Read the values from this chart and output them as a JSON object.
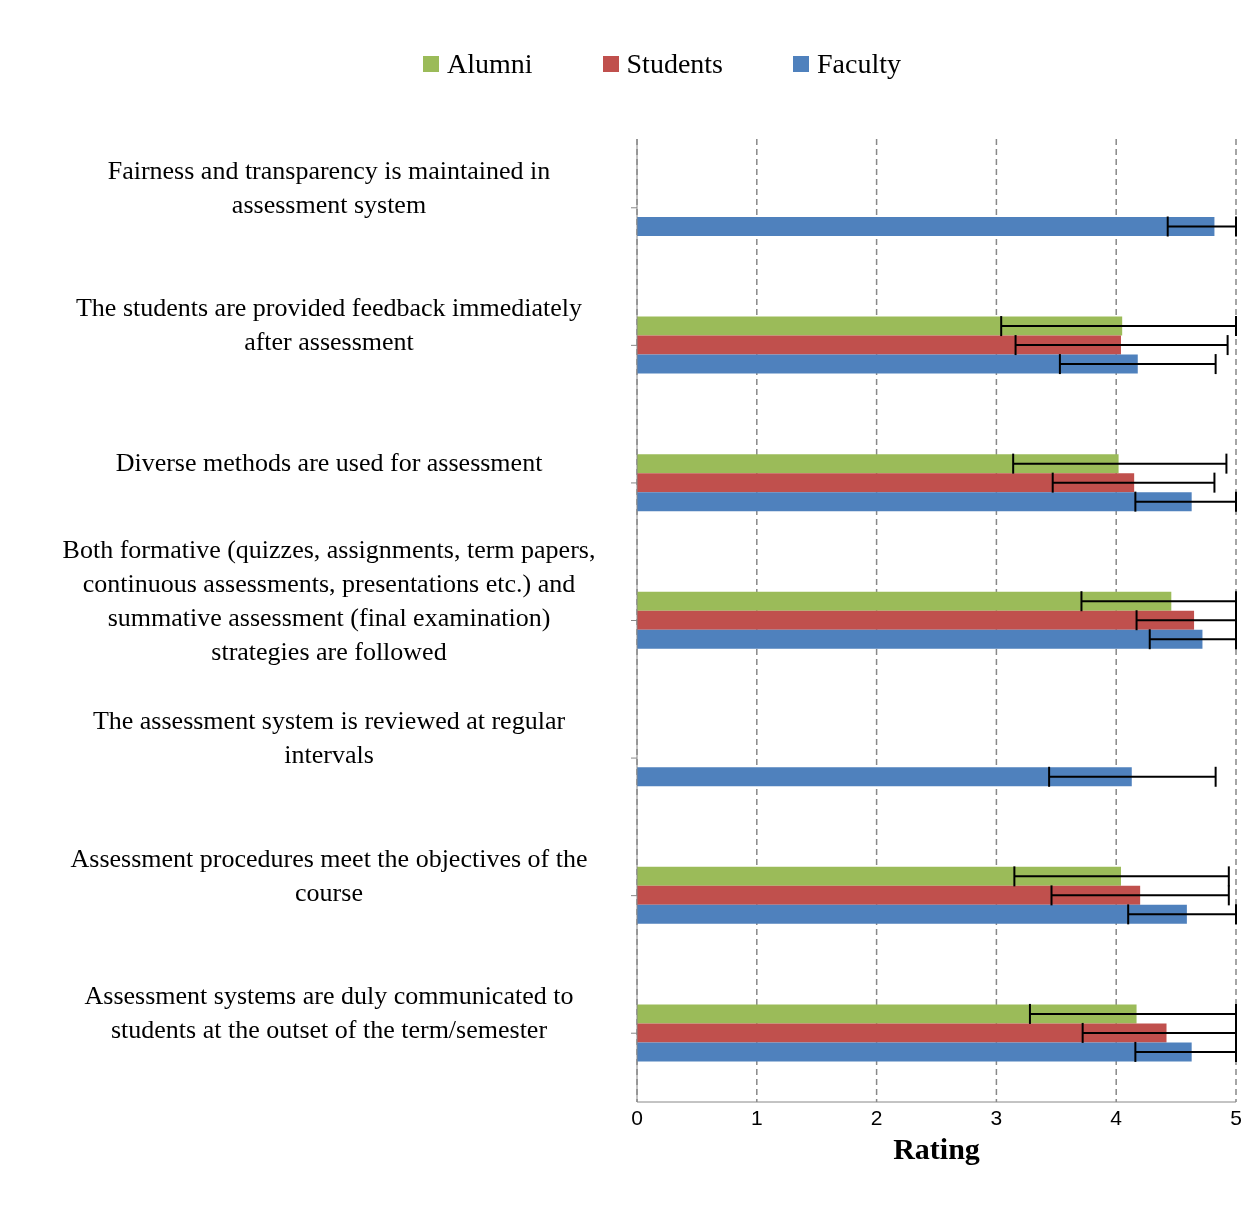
{
  "chart_data": {
    "type": "bar",
    "orientation": "horizontal",
    "xlabel": "Rating",
    "categories": [
      "Fairness and transparency is maintained in assessment system",
      "The students are provided feedback immediately after assessment",
      "Diverse methods are used for assessment",
      "Both formative (quizzes, assignments, term papers, continuous assessments, presentations etc.) and summative assessment (final examination) strategies are followed",
      "The assessment system is reviewed at regular intervals",
      "Assessment procedures meet the objectives of the course",
      "Assessment systems are duly communicated to students at the outset of the term/semester"
    ],
    "series": [
      {
        "name": "Alumni",
        "color": "#9bbb59",
        "values": [
          null,
          4.05,
          4.02,
          4.46,
          null,
          4.04,
          4.17
        ],
        "errors": [
          null,
          [
            3.04,
            5
          ],
          [
            3.14,
            4.92
          ],
          [
            3.71,
            5
          ],
          null,
          [
            3.15,
            4.94
          ],
          [
            3.28,
            5
          ]
        ]
      },
      {
        "name": "Students",
        "color": "#c0504d",
        "values": [
          null,
          4.04,
          4.15,
          4.65,
          null,
          4.2,
          4.42
        ],
        "errors": [
          null,
          [
            3.16,
            4.93
          ],
          [
            3.47,
            4.82
          ],
          [
            4.17,
            5
          ],
          null,
          [
            3.46,
            4.94
          ],
          [
            3.72,
            5
          ]
        ]
      },
      {
        "name": "Faculty",
        "color": "#4f81bd",
        "values": [
          4.82,
          4.18,
          4.63,
          4.72,
          4.13,
          4.59,
          4.63
        ],
        "errors": [
          [
            4.43,
            5
          ],
          [
            3.53,
            4.83
          ],
          [
            4.16,
            5
          ],
          [
            4.28,
            5
          ],
          [
            3.44,
            4.83
          ],
          [
            4.1,
            5
          ],
          [
            4.16,
            5
          ]
        ]
      }
    ],
    "xlim": [
      0,
      5
    ],
    "xticks": [
      0,
      1,
      2,
      3,
      4,
      5
    ],
    "grid": "x",
    "legend": "top"
  }
}
